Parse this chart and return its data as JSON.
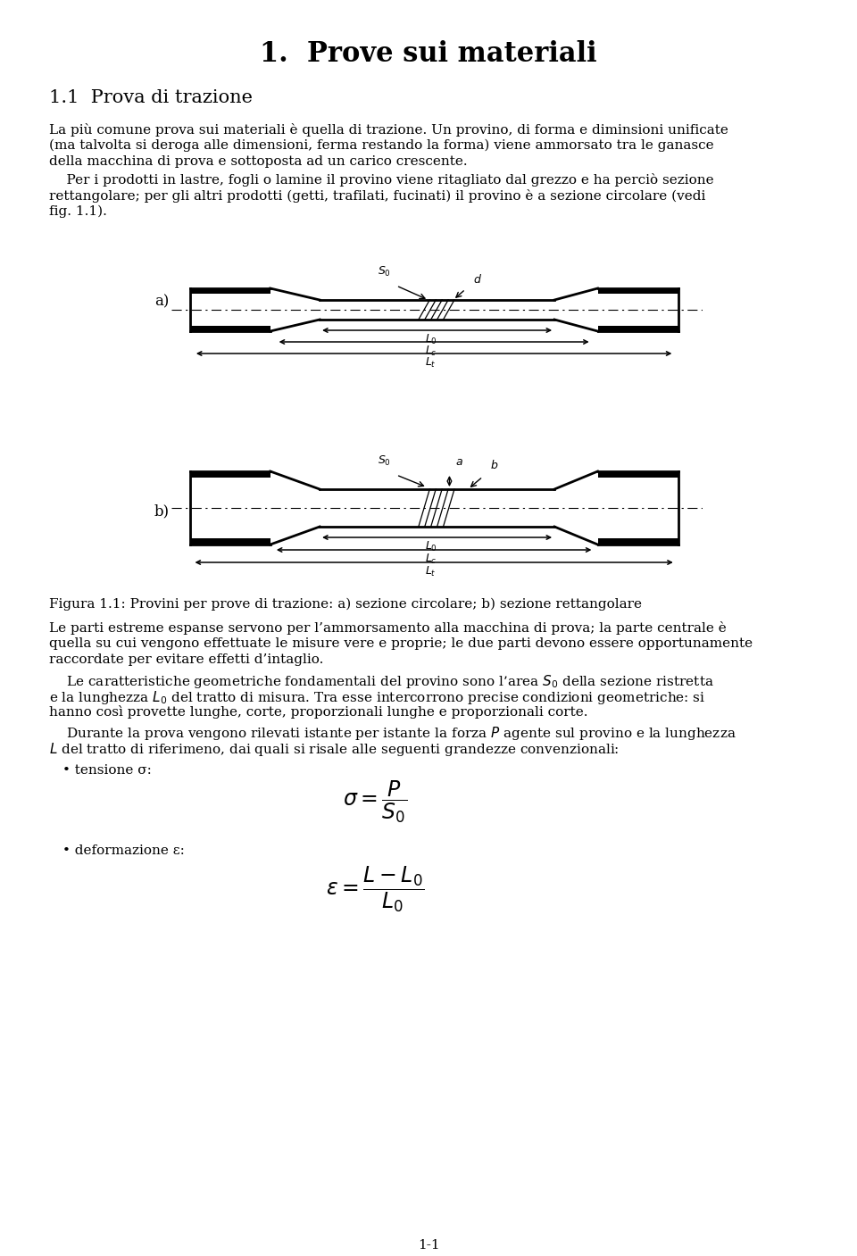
{
  "title": "1.  Prove sui materiali",
  "section": "1.1  Prova di trazione",
  "para1_lines": [
    "La più comune prova sui materiali è quella di trazione. Un provino, di forma e diminsioni unificate",
    "(ma talvolta si deroga alle dimensioni, ferma restando la forma) viene ammorsato tra le ganasce",
    "della macchina di prova e sottoposta ad un carico crescente."
  ],
  "para2_lines": [
    "    Per i prodotti in lastre, fogli o lamine il provino viene ritagliato dal grezzo e ha perciò sezione",
    "rettangolare; per gli altri prodotti (getti, trafilati, fucinati) il provino è a sezione circolare (vedi",
    "fig. 1.1)."
  ],
  "label_a": "a)",
  "label_b": "b)",
  "fig_caption": "Figura 1.1: Provini per prove di trazione: a) sezione circolare; b) sezione rettangolare",
  "para3_lines": [
    "Le parti estreme espanse servono per l’ammorsamento alla macchina di prova; la parte centrale è",
    "quella su cui vengono effettuate le misure vere e proprie; le due parti devono essere opportunamente",
    "raccordate per evitare effetti d’intaglio."
  ],
  "para4_lines": [
    "    Le caratteristiche geometriche fondamentali del provino sono l’area $S_0$ della sezione ristretta",
    "e la lunghezza $L_0$ del tratto di misura. Tra esse intercorrono precise condizioni geometriche: si",
    "hanno così provette lunghe, corte, proporzionali lunghe e proporzionali corte."
  ],
  "para5_lines": [
    "    Durante la prova vengono rilevati istante per istante la forza $P$ agente sul provino e la lunghezza",
    "$L$ del tratto di riferimeno, dai quali si risale alle seguenti grandezze convenzionali:"
  ],
  "bullet1": "• tensione σ:",
  "formula1": "$\\sigma = \\dfrac{P}{S_0}$",
  "bullet2": "• deformazione ε:",
  "formula2": "$\\epsilon = \\dfrac{L - L_0}{L_0}$",
  "page_num": "1-1",
  "bg_color": "#ffffff",
  "text_color": "#000000"
}
